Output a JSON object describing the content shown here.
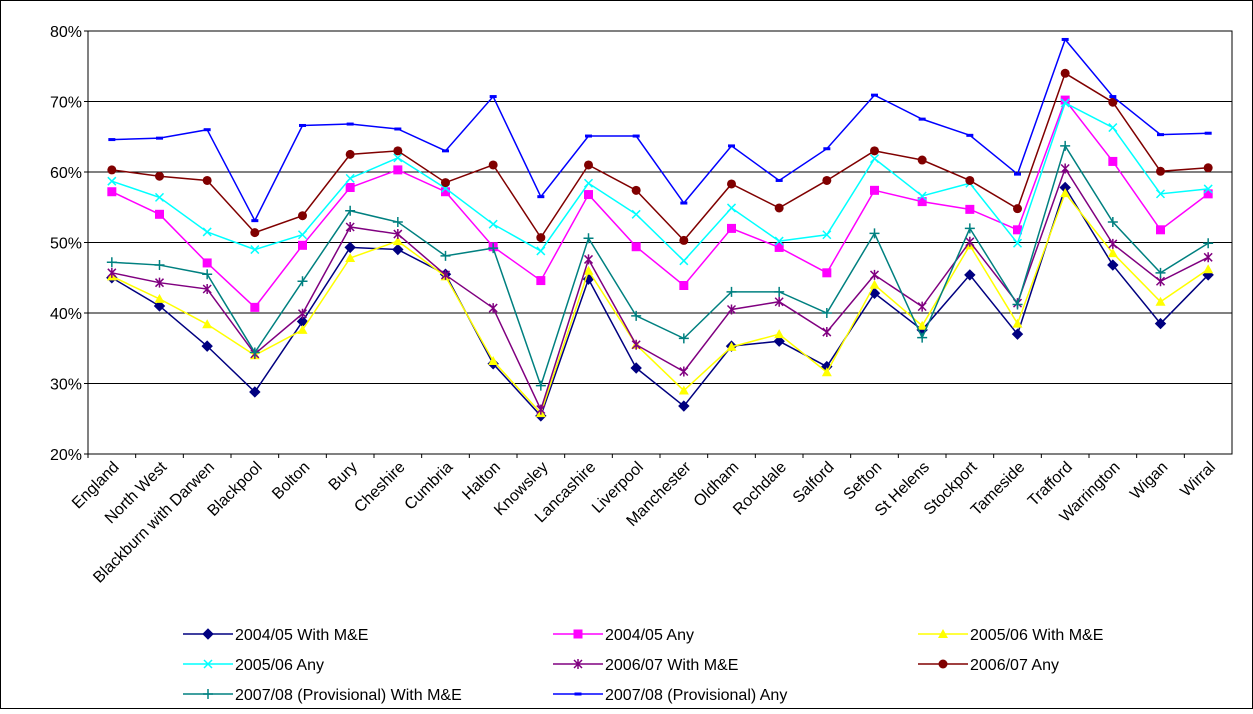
{
  "chart_data": {
    "type": "line",
    "categories": [
      "England",
      "North West",
      "Blackburn with Darwen",
      "Blackpool",
      "Bolton",
      "Bury",
      "Cheshire",
      "Cumbria",
      "Halton",
      "Knowsley",
      "Lancashire",
      "Liverpool",
      "Manchester",
      "Oldham",
      "Rochdale",
      "Salford",
      "Sefton",
      "St Helens",
      "Stockport",
      "Tameside",
      "Trafford",
      "Warrington",
      "Wigan",
      "Wirral"
    ],
    "ylim": [
      20,
      80
    ],
    "yticks": [
      {
        "value": 20,
        "label": "20%"
      },
      {
        "value": 30,
        "label": "30%"
      },
      {
        "value": 40,
        "label": "40%"
      },
      {
        "value": 50,
        "label": "50%"
      },
      {
        "value": 60,
        "label": "60%"
      },
      {
        "value": 70,
        "label": "70%"
      },
      {
        "value": 80,
        "label": "80%"
      }
    ],
    "grid": true,
    "legend": "bottom",
    "series": [
      {
        "name": "2004/05 With M&E",
        "color": "#000080",
        "marker": "diamond",
        "values": [
          45,
          41,
          35.3,
          28.8,
          38.8,
          49.3,
          49,
          45.5,
          32.8,
          25.4,
          44.8,
          32.2,
          26.8,
          35.3,
          36,
          32.4,
          42.8,
          37.6,
          45.4,
          37,
          57.8,
          46.8,
          38.5,
          45.4
        ]
      },
      {
        "name": "2004/05 Any",
        "color": "#ff00ff",
        "marker": "square",
        "values": [
          57.2,
          54,
          47.1,
          40.8,
          49.6,
          57.8,
          60.3,
          57.2,
          49.4,
          44.6,
          56.8,
          49.4,
          43.9,
          52,
          49.3,
          45.7,
          57.4,
          55.8,
          54.7,
          51.8,
          70.2,
          61.5,
          51.8,
          56.9
        ]
      },
      {
        "name": "2005/06 With M&E",
        "color": "#ffff00",
        "marker": "triangle",
        "values": [
          45.2,
          42,
          38.4,
          34,
          37.6,
          47.8,
          50.2,
          45.2,
          33.2,
          25.8,
          46,
          35.5,
          29,
          35.2,
          37,
          31.6,
          44,
          38.2,
          49.6,
          38.5,
          57,
          48.5,
          41.6,
          46.2
        ]
      },
      {
        "name": "2005/06 Any",
        "color": "#00ffff",
        "marker": "x",
        "values": [
          58.7,
          56.4,
          51.5,
          49,
          51.1,
          59.1,
          62,
          57.7,
          52.6,
          48.8,
          58.4,
          54,
          47.4,
          54.9,
          50.2,
          51.1,
          61.9,
          56.6,
          58.4,
          49.9,
          69.8,
          66.3,
          56.9,
          57.6
        ]
      },
      {
        "name": "2006/07 With M&E",
        "color": "#800080",
        "marker": "star",
        "values": [
          45.7,
          44.3,
          43.4,
          34.2,
          39.9,
          52.2,
          51.2,
          45.4,
          40.7,
          26.3,
          47.6,
          35.5,
          31.7,
          40.5,
          41.6,
          37.3,
          45.4,
          40.9,
          50.1,
          41.4,
          60.5,
          49.8,
          44.5,
          47.9
        ]
      },
      {
        "name": "2006/07 Any",
        "color": "#800000",
        "marker": "circle",
        "values": [
          60.3,
          59.4,
          58.8,
          51.4,
          53.8,
          62.5,
          63,
          58.5,
          61,
          50.7,
          61,
          57.4,
          50.3,
          58.3,
          54.9,
          58.8,
          63,
          61.7,
          58.8,
          54.8,
          74,
          69.9,
          60.1,
          60.6
        ]
      },
      {
        "name": "2007/08 (Provisional) With M&E",
        "color": "#008080",
        "marker": "plus",
        "values": [
          47.2,
          46.8,
          45.5,
          34.4,
          44.5,
          54.5,
          52.9,
          48.1,
          49.2,
          29.7,
          50.6,
          39.6,
          36.4,
          43,
          43,
          40,
          51.3,
          36.5,
          52,
          41.2,
          63.7,
          52.9,
          45.7,
          49.9
        ]
      },
      {
        "name": "2007/08 (Provisional) Any",
        "color": "#0000ff",
        "marker": "dash",
        "values": [
          64.6,
          64.8,
          66,
          53.1,
          66.6,
          66.8,
          66.1,
          63,
          70.7,
          56.5,
          65.1,
          65.1,
          55.6,
          63.7,
          58.8,
          63.3,
          70.9,
          67.5,
          65.2,
          59.7,
          78.8,
          70.7,
          65.3,
          65.5
        ]
      }
    ]
  }
}
